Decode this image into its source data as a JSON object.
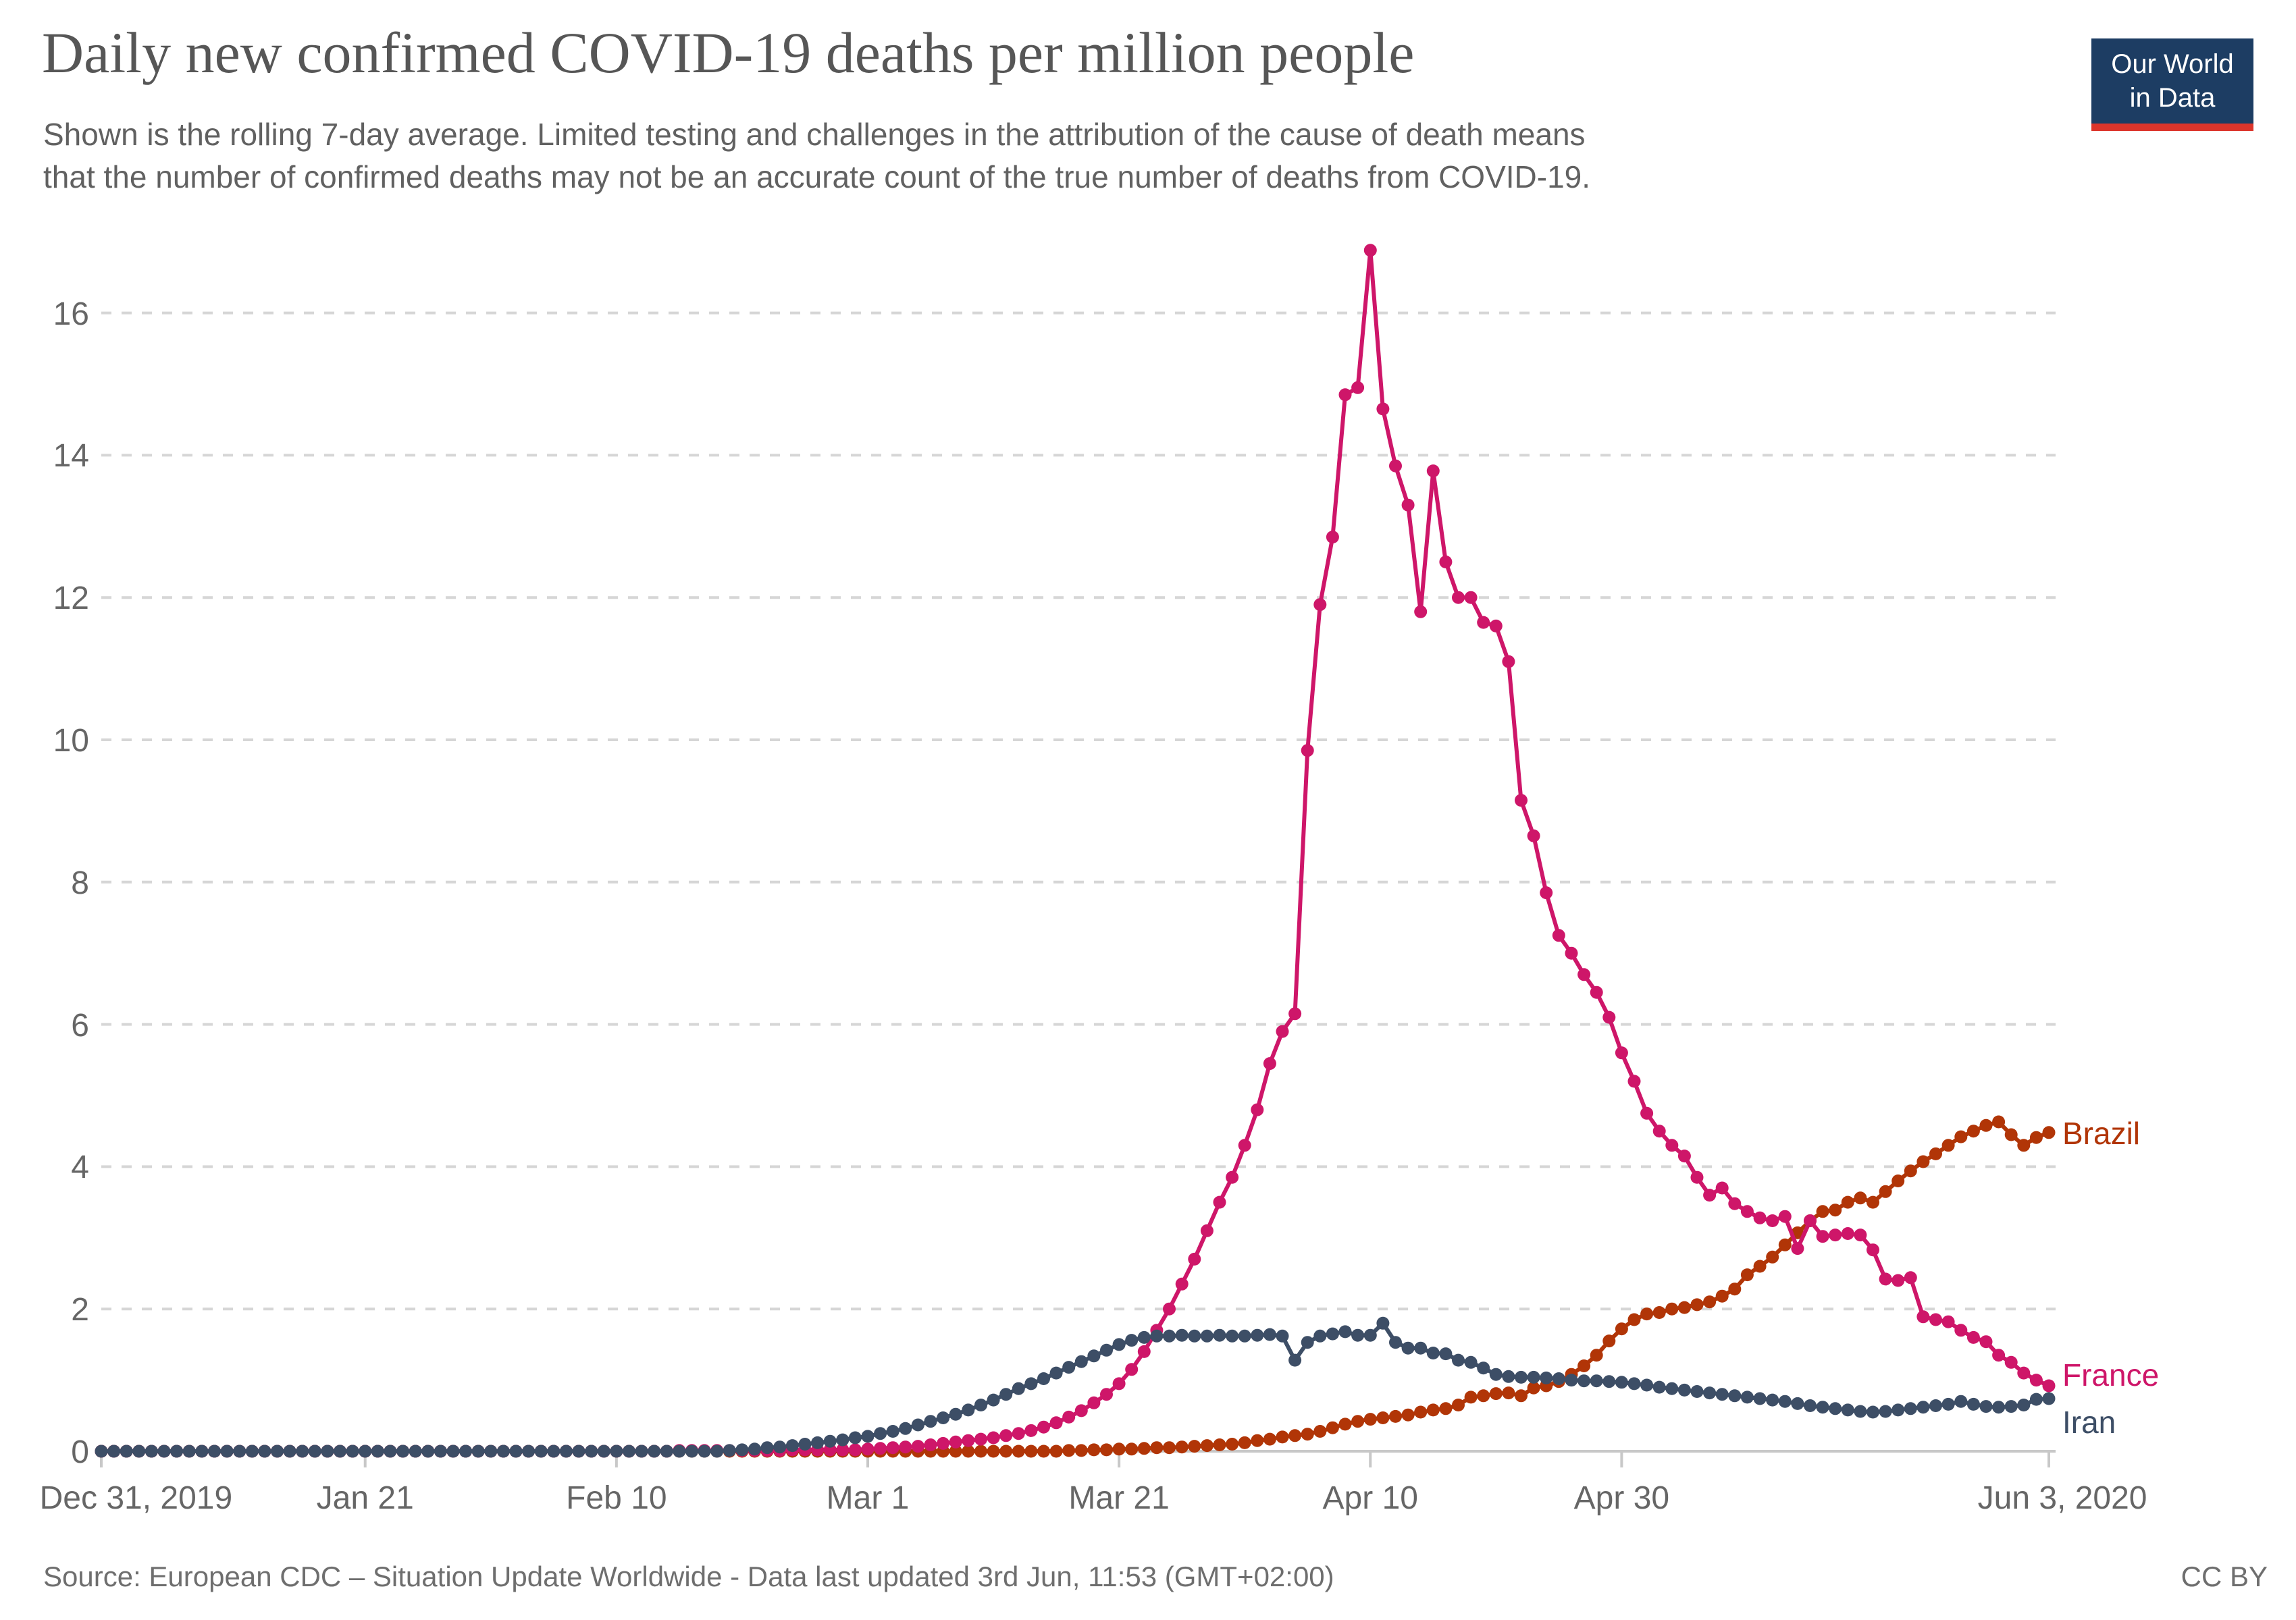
{
  "header": {
    "title": "Daily new confirmed COVID-19 deaths per million people",
    "subtitle_line1": "Shown is the rolling 7-day average. Limited testing and challenges in the attribution of the cause of death means",
    "subtitle_line2": "that the number of confirmed deaths may not be an accurate count of the true number of deaths from COVID-19.",
    "logo": {
      "line1": "Our World",
      "line2": "in Data",
      "bg_color": "#1d3d63",
      "bar_color": "#dc352b"
    }
  },
  "footer": {
    "source": "Source: European CDC – Situation Update Worldwide - Data last updated 3rd Jun, 11:53 (GMT+02:00)",
    "license": "CC BY"
  },
  "chart_data": {
    "type": "line",
    "title": "Daily new confirmed COVID-19 deaths per million people",
    "subtitle": "Shown is the rolling 7-day average.",
    "xlabel": "",
    "ylabel": "",
    "grid": "dashed horizontal",
    "legend_position": "right-end-labels",
    "marker": "circle-per-day",
    "x_start_date": "Dec 31, 2019",
    "x_end_date": "Jun 3, 2020",
    "days_total": 156,
    "x_ticks": [
      {
        "label": "Dec 31, 2019",
        "day": 0
      },
      {
        "label": "Jan 21",
        "day": 21
      },
      {
        "label": "Feb 10",
        "day": 41
      },
      {
        "label": "Mar 1",
        "day": 61
      },
      {
        "label": "Mar 21",
        "day": 81
      },
      {
        "label": "Apr 10",
        "day": 101
      },
      {
        "label": "Apr 30",
        "day": 121
      },
      {
        "label": "Jun 3, 2020",
        "day": 155
      }
    ],
    "y_ticks": [
      0,
      2,
      4,
      6,
      8,
      10,
      12,
      14,
      16
    ],
    "ylim": [
      0,
      17.2
    ],
    "series": [
      {
        "name": "Brazil",
        "color": "#B13507",
        "values": [
          0,
          0,
          0,
          0,
          0,
          0,
          0,
          0,
          0,
          0,
          0,
          0,
          0,
          0,
          0,
          0,
          0,
          0,
          0,
          0,
          0,
          0,
          0,
          0,
          0,
          0,
          0,
          0,
          0,
          0,
          0,
          0,
          0,
          0,
          0,
          0,
          0,
          0,
          0,
          0,
          0,
          0,
          0,
          0,
          0,
          0,
          0,
          0,
          0,
          0,
          0,
          0,
          0,
          0,
          0,
          0,
          0,
          0,
          0,
          0,
          0,
          0,
          0,
          0,
          0,
          0,
          0,
          0,
          0,
          0,
          0,
          0,
          0,
          0,
          0,
          0,
          0,
          0.01,
          0.01,
          0.02,
          0.02,
          0.03,
          0.03,
          0.04,
          0.05,
          0.05,
          0.06,
          0.07,
          0.08,
          0.09,
          0.1,
          0.12,
          0.15,
          0.17,
          0.2,
          0.22,
          0.24,
          0.28,
          0.33,
          0.38,
          0.42,
          0.45,
          0.47,
          0.49,
          0.51,
          0.55,
          0.58,
          0.6,
          0.65,
          0.76,
          0.78,
          0.81,
          0.82,
          0.78,
          0.89,
          0.92,
          0.98,
          1.08,
          1.2,
          1.35,
          1.55,
          1.72,
          1.85,
          1.93,
          1.95,
          2.0,
          2.02,
          2.06,
          2.1,
          2.18,
          2.28,
          2.48,
          2.6,
          2.73,
          2.9,
          3.07,
          3.24,
          3.37,
          3.39,
          3.5,
          3.56,
          3.5,
          3.65,
          3.8,
          3.94,
          4.07,
          4.18,
          4.3,
          4.42,
          4.5,
          4.58,
          4.63,
          4.45,
          4.3,
          4.41,
          4.48
        ]
      },
      {
        "name": "France",
        "color": "#CE1669",
        "values": [
          0,
          0,
          0,
          0,
          0,
          0,
          0,
          0,
          0,
          0,
          0,
          0,
          0,
          0,
          0,
          0,
          0,
          0,
          0,
          0,
          0,
          0,
          0,
          0,
          0,
          0,
          0,
          0,
          0,
          0,
          0,
          0,
          0,
          0,
          0,
          0,
          0,
          0,
          0,
          0,
          0,
          0,
          0,
          0,
          0,
          0,
          0.01,
          0.01,
          0.01,
          0.01,
          0.01,
          0.01,
          0.01,
          0.01,
          0.01,
          0.02,
          0.02,
          0.02,
          0.02,
          0.02,
          0.02,
          0.03,
          0.04,
          0.05,
          0.06,
          0.07,
          0.09,
          0.11,
          0.13,
          0.15,
          0.17,
          0.19,
          0.22,
          0.25,
          0.29,
          0.34,
          0.4,
          0.48,
          0.57,
          0.68,
          0.8,
          0.95,
          1.15,
          1.4,
          1.7,
          2.0,
          2.35,
          2.7,
          3.1,
          3.5,
          3.85,
          4.3,
          4.8,
          5.45,
          5.9,
          6.15,
          9.85,
          11.9,
          12.85,
          14.85,
          14.95,
          16.88,
          14.65,
          13.85,
          13.3,
          11.8,
          13.78,
          12.5,
          12.0,
          12.0,
          11.65,
          11.6,
          11.1,
          9.15,
          8.65,
          7.85,
          7.25,
          7.0,
          6.7,
          6.45,
          6.1,
          5.6,
          5.2,
          4.75,
          4.5,
          4.3,
          4.15,
          3.85,
          3.6,
          3.7,
          3.48,
          3.37,
          3.28,
          3.24,
          3.3,
          2.85,
          3.24,
          3.02,
          3.04,
          3.06,
          3.04,
          2.83,
          2.42,
          2.4,
          2.44,
          1.89,
          1.85,
          1.82,
          1.7,
          1.6,
          1.54,
          1.35,
          1.25,
          1.1,
          1.0,
          0.92
        ]
      },
      {
        "name": "Iran",
        "color": "#3D4E66",
        "values": [
          0,
          0,
          0,
          0,
          0,
          0,
          0,
          0,
          0,
          0,
          0,
          0,
          0,
          0,
          0,
          0,
          0,
          0,
          0,
          0,
          0,
          0,
          0,
          0,
          0,
          0,
          0,
          0,
          0,
          0,
          0,
          0,
          0,
          0,
          0,
          0,
          0,
          0,
          0,
          0,
          0,
          0,
          0,
          0,
          0,
          0,
          0,
          0,
          0,
          0,
          0.01,
          0.02,
          0.03,
          0.05,
          0.06,
          0.08,
          0.1,
          0.12,
          0.14,
          0.16,
          0.19,
          0.21,
          0.25,
          0.28,
          0.32,
          0.37,
          0.42,
          0.47,
          0.52,
          0.58,
          0.65,
          0.72,
          0.8,
          0.88,
          0.95,
          1.02,
          1.1,
          1.18,
          1.26,
          1.34,
          1.42,
          1.5,
          1.56,
          1.6,
          1.62,
          1.62,
          1.63,
          1.62,
          1.62,
          1.63,
          1.62,
          1.62,
          1.63,
          1.64,
          1.62,
          1.28,
          1.53,
          1.62,
          1.65,
          1.68,
          1.63,
          1.63,
          1.8,
          1.53,
          1.45,
          1.45,
          1.38,
          1.37,
          1.28,
          1.25,
          1.17,
          1.08,
          1.05,
          1.04,
          1.04,
          1.03,
          1.02,
          1.0,
          0.99,
          0.99,
          0.98,
          0.97,
          0.95,
          0.93,
          0.9,
          0.88,
          0.86,
          0.84,
          0.82,
          0.8,
          0.78,
          0.76,
          0.74,
          0.72,
          0.7,
          0.67,
          0.64,
          0.62,
          0.6,
          0.58,
          0.56,
          0.55,
          0.56,
          0.58,
          0.6,
          0.62,
          0.64,
          0.66,
          0.7,
          0.66,
          0.63,
          0.62,
          0.63,
          0.65,
          0.73,
          0.74
        ]
      }
    ]
  }
}
